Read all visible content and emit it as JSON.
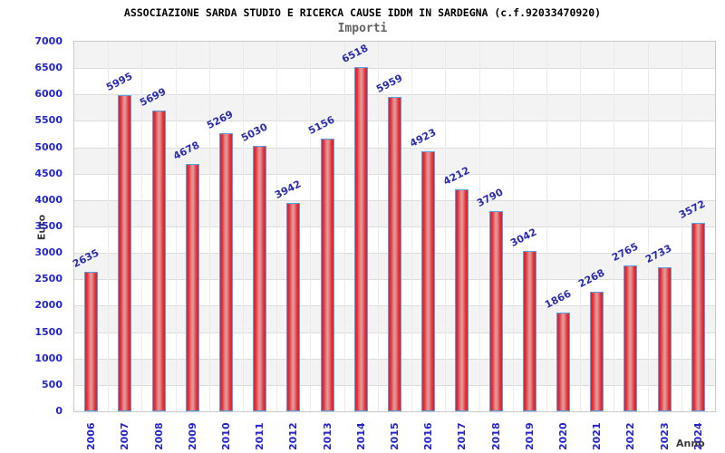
{
  "chart_data": {
    "type": "bar",
    "title": "ASSOCIAZIONE SARDA STUDIO E RICERCA CAUSE IDDM IN SARDEGNA (c.f.92033470920)",
    "subtitle": "Importi",
    "xlabel": "Anno",
    "ylabel": "Euro",
    "categories": [
      "2006",
      "2007",
      "2008",
      "2009",
      "2010",
      "2011",
      "2012",
      "2013",
      "2014",
      "2015",
      "2016",
      "2017",
      "2018",
      "2019",
      "2020",
      "2021",
      "2022",
      "2023",
      "2024"
    ],
    "values": [
      2635,
      5995,
      5699,
      4678,
      5269,
      5030,
      3942,
      5156,
      6518,
      5959,
      4923,
      4212,
      3790,
      3042,
      1866,
      2268,
      2765,
      2733,
      3572
    ],
    "ylim": [
      0,
      7000
    ],
    "ytick_step": 500,
    "y_tick_labels": [
      "7000",
      "6500",
      "6000",
      "5500",
      "5000",
      "4500",
      "4000",
      "3500",
      "3000",
      "2500",
      "2000",
      "1500",
      "1000",
      "500",
      "0"
    ],
    "grid": true,
    "legend_position": "none",
    "band_colors": [
      "#f3f3f3",
      "#ffffff"
    ],
    "colors": {
      "bar_edge": "#df1f2a",
      "bar_center": "#d9a0a0",
      "bar_border": "#58a0e2",
      "tick_label": "#2424cc",
      "value_label": "#2b2bb0",
      "gridline": "#dcdcdc",
      "plot_border": "#c9c9c9",
      "axis_title": "#3a3a3a",
      "title": "#000000",
      "subtitle": "#636363"
    }
  }
}
